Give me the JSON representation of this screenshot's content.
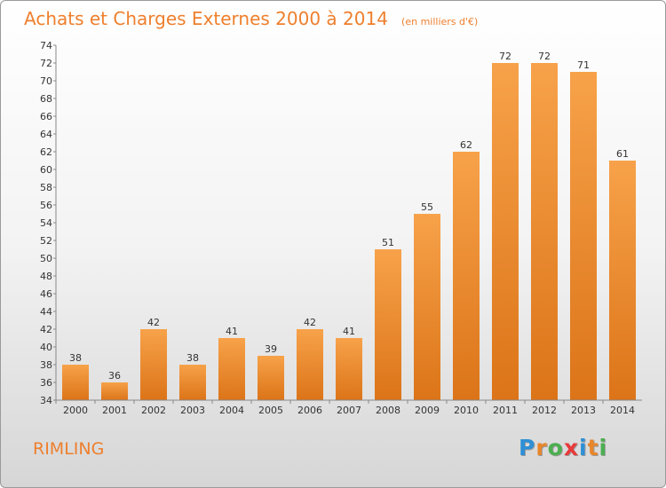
{
  "chart_data": {
    "type": "bar",
    "title": "Achats et Charges Externes 2000 à 2014",
    "subtitle": "(en milliers d'€)",
    "categories": [
      "2000",
      "2001",
      "2002",
      "2003",
      "2004",
      "2005",
      "2006",
      "2007",
      "2008",
      "2009",
      "2010",
      "2011",
      "2012",
      "2013",
      "2014"
    ],
    "values": [
      38,
      36,
      42,
      38,
      41,
      39,
      42,
      41,
      51,
      55,
      62,
      72,
      72,
      71,
      61
    ],
    "ylim": [
      34,
      74
    ],
    "ytick_step": 2,
    "grid": false,
    "bar_color": "#ee8a2e"
  },
  "commune": "RIMLING",
  "logo": {
    "letters": [
      "P",
      "r",
      "o",
      "x",
      "i",
      "t",
      "i"
    ],
    "colors": [
      "#2e8fd6",
      "#e8862a",
      "#4caf50",
      "#e83a3a",
      "#2e8fd6",
      "#e8862a",
      "#4caf50"
    ]
  }
}
